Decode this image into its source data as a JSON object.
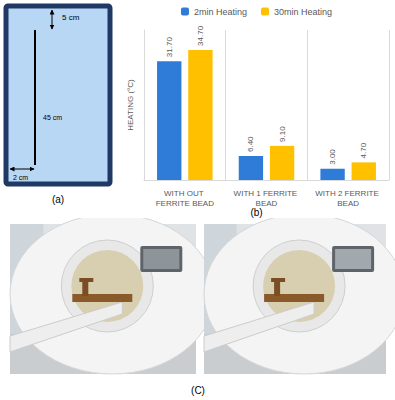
{
  "diagram": {
    "label": "(a)",
    "top_gap": "5 cm",
    "wire_length": "45 cm",
    "side_gap": "2 cm"
  },
  "chart_label": "(b)",
  "chart_data": {
    "type": "bar",
    "ylabel": "HEATING (°C)",
    "categories": [
      "WITH OUT FERRITE BEAD",
      "WITH 1 FERRITE BEAD",
      "WITH 2 FERRITE BEAD"
    ],
    "series": [
      {
        "name": "2min Heating",
        "color": "#2E7BD8",
        "values": [
          31.7,
          6.4,
          3.0
        ],
        "value_labels": [
          "31.70",
          "6.40",
          "3.00"
        ]
      },
      {
        "name": "30min Heating",
        "color": "#FFC000",
        "values": [
          34.7,
          9.1,
          4.7
        ],
        "value_labels": [
          "34.70",
          "9.10",
          "4.70"
        ]
      }
    ],
    "ylim": [
      0,
      40
    ],
    "tick_labels": "x",
    "legend": "top",
    "data_labels": true,
    "grid": false
  },
  "photos": {
    "label": "(C)"
  }
}
